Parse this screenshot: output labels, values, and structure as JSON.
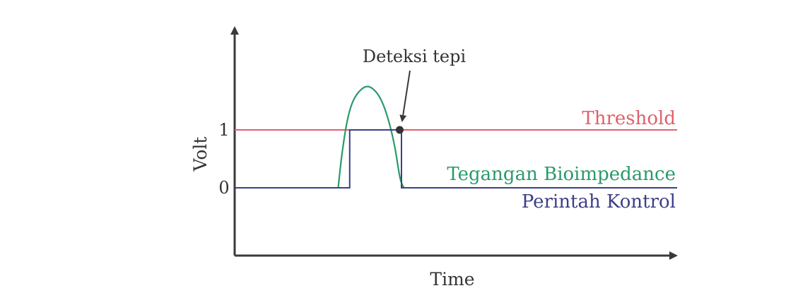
{
  "chart_data": {
    "type": "line",
    "title": "",
    "xlabel": "Time",
    "ylabel": "Volt",
    "y_ticks": [
      "0",
      "1"
    ],
    "ylim": [
      -1.15,
      3.5
    ],
    "xlim": [
      0,
      100
    ],
    "grid": false,
    "legend": "inline-right",
    "series": [
      {
        "name": "Threshold",
        "color": "#e0606b",
        "x": [
          0,
          100
        ],
        "y": [
          1,
          1
        ]
      },
      {
        "name": "Tegangan Bioimpedance",
        "color": "#2a9a6a",
        "x": [
          23.4,
          24.2,
          25.3,
          26.5,
          28.1,
          30.0,
          31.9,
          33.5,
          35.0,
          36.2,
          37.3,
          37.9,
          38.3
        ],
        "y": [
          0,
          0.55,
          1.1,
          1.45,
          1.66,
          1.75,
          1.66,
          1.45,
          1.1,
          0.7,
          0.2,
          0.05,
          0
        ]
      },
      {
        "name": "Perintah Kontrol",
        "color": "#3c3f86",
        "x": [
          0,
          26.0,
          26.0,
          37.7,
          37.7,
          100
        ],
        "y": [
          0,
          0,
          1,
          1,
          0,
          0
        ]
      }
    ],
    "annotations": [
      {
        "text": "Deteksi tepi",
        "x": 37.3,
        "y": 1
      }
    ]
  }
}
